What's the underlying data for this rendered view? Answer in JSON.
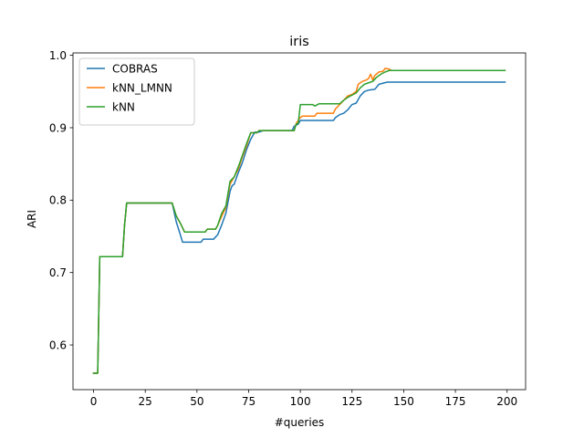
{
  "chart_data": {
    "type": "line",
    "title": "iris",
    "xlabel": "#queries",
    "ylabel": "ARI",
    "xlim": [
      -9.95,
      208.95
    ],
    "ylim": [
      0.5383,
      1.0033
    ],
    "xticks": [
      0,
      25,
      50,
      75,
      100,
      125,
      150,
      175,
      200
    ],
    "yticks": [
      0.6,
      0.7,
      0.8,
      0.9,
      1.0
    ],
    "xtick_labels": [
      "0",
      "25",
      "50",
      "75",
      "100",
      "125",
      "150",
      "175",
      "200"
    ],
    "ytick_labels": [
      "0.6",
      "0.7",
      "0.8",
      "0.9",
      "1.0"
    ],
    "grid": false,
    "legend_position": "upper left",
    "series": [
      {
        "name": "COBRAS",
        "color": "#1f77b4",
        "points": [
          [
            0,
            0.561
          ],
          [
            2,
            0.561
          ],
          [
            3,
            0.722
          ],
          [
            14,
            0.722
          ],
          [
            15,
            0.766
          ],
          [
            16,
            0.796
          ],
          [
            38,
            0.796
          ],
          [
            40,
            0.77
          ],
          [
            42,
            0.752
          ],
          [
            43,
            0.742
          ],
          [
            52,
            0.742
          ],
          [
            53,
            0.746
          ],
          [
            58,
            0.746
          ],
          [
            60,
            0.752
          ],
          [
            62,
            0.766
          ],
          [
            64,
            0.782
          ],
          [
            66,
            0.812
          ],
          [
            67,
            0.82
          ],
          [
            68,
            0.822
          ],
          [
            70,
            0.838
          ],
          [
            72,
            0.852
          ],
          [
            74,
            0.87
          ],
          [
            76,
            0.884
          ],
          [
            78,
            0.894
          ],
          [
            80,
            0.894
          ],
          [
            82,
            0.896
          ],
          [
            96,
            0.896
          ],
          [
            97,
            0.902
          ],
          [
            99,
            0.905
          ],
          [
            100,
            0.91
          ],
          [
            116,
            0.91
          ],
          [
            117,
            0.914
          ],
          [
            119,
            0.918
          ],
          [
            121,
            0.92
          ],
          [
            123,
            0.925
          ],
          [
            125,
            0.932
          ],
          [
            127,
            0.934
          ],
          [
            129,
            0.944
          ],
          [
            131,
            0.95
          ],
          [
            133,
            0.952
          ],
          [
            136,
            0.953
          ],
          [
            138,
            0.96
          ],
          [
            142,
            0.963
          ],
          [
            199,
            0.963
          ]
        ]
      },
      {
        "name": "kNN_LMNN",
        "color": "#ff7f0e",
        "points": [
          [
            0,
            0.561
          ],
          [
            2,
            0.561
          ],
          [
            3,
            0.722
          ],
          [
            14,
            0.722
          ],
          [
            15,
            0.766
          ],
          [
            16,
            0.796
          ],
          [
            38,
            0.796
          ],
          [
            40,
            0.778
          ],
          [
            42,
            0.768
          ],
          [
            44,
            0.756
          ],
          [
            54,
            0.756
          ],
          [
            55,
            0.76
          ],
          [
            59,
            0.76
          ],
          [
            60,
            0.765
          ],
          [
            62,
            0.778
          ],
          [
            64,
            0.79
          ],
          [
            66,
            0.822
          ],
          [
            68,
            0.832
          ],
          [
            70,
            0.843
          ],
          [
            72,
            0.86
          ],
          [
            74,
            0.875
          ],
          [
            76,
            0.893
          ],
          [
            79,
            0.893
          ],
          [
            80,
            0.896
          ],
          [
            97,
            0.896
          ],
          [
            98,
            0.906
          ],
          [
            100,
            0.914
          ],
          [
            101,
            0.916
          ],
          [
            107,
            0.916
          ],
          [
            108,
            0.92
          ],
          [
            116,
            0.92
          ],
          [
            117,
            0.926
          ],
          [
            119,
            0.932
          ],
          [
            121,
            0.938
          ],
          [
            123,
            0.944
          ],
          [
            125,
            0.946
          ],
          [
            127,
            0.95
          ],
          [
            128,
            0.96
          ],
          [
            130,
            0.964
          ],
          [
            132,
            0.966
          ],
          [
            133,
            0.968
          ],
          [
            134,
            0.974
          ],
          [
            135,
            0.966
          ],
          [
            136,
            0.972
          ],
          [
            138,
            0.977
          ],
          [
            140,
            0.978
          ],
          [
            141,
            0.982
          ],
          [
            143,
            0.981
          ],
          [
            144,
            0.979
          ],
          [
            199,
            0.979
          ]
        ]
      },
      {
        "name": "kNN",
        "color": "#2ca02c",
        "points": [
          [
            0,
            0.561
          ],
          [
            2,
            0.561
          ],
          [
            3,
            0.722
          ],
          [
            14,
            0.722
          ],
          [
            15,
            0.766
          ],
          [
            16,
            0.796
          ],
          [
            38,
            0.796
          ],
          [
            40,
            0.778
          ],
          [
            42,
            0.768
          ],
          [
            44,
            0.756
          ],
          [
            54,
            0.756
          ],
          [
            55,
            0.76
          ],
          [
            59,
            0.76
          ],
          [
            60,
            0.765
          ],
          [
            62,
            0.782
          ],
          [
            64,
            0.792
          ],
          [
            66,
            0.826
          ],
          [
            68,
            0.832
          ],
          [
            70,
            0.846
          ],
          [
            72,
            0.862
          ],
          [
            74,
            0.878
          ],
          [
            76,
            0.893
          ],
          [
            79,
            0.893
          ],
          [
            80,
            0.896
          ],
          [
            97,
            0.896
          ],
          [
            98,
            0.905
          ],
          [
            99,
            0.906
          ],
          [
            100,
            0.932
          ],
          [
            106,
            0.932
          ],
          [
            107,
            0.93
          ],
          [
            109,
            0.933
          ],
          [
            119,
            0.933
          ],
          [
            121,
            0.938
          ],
          [
            123,
            0.942
          ],
          [
            125,
            0.945
          ],
          [
            127,
            0.948
          ],
          [
            129,
            0.955
          ],
          [
            131,
            0.96
          ],
          [
            133,
            0.962
          ],
          [
            135,
            0.964
          ],
          [
            137,
            0.97
          ],
          [
            139,
            0.974
          ],
          [
            141,
            0.977
          ],
          [
            143,
            0.979
          ],
          [
            199,
            0.979
          ]
        ]
      }
    ]
  }
}
